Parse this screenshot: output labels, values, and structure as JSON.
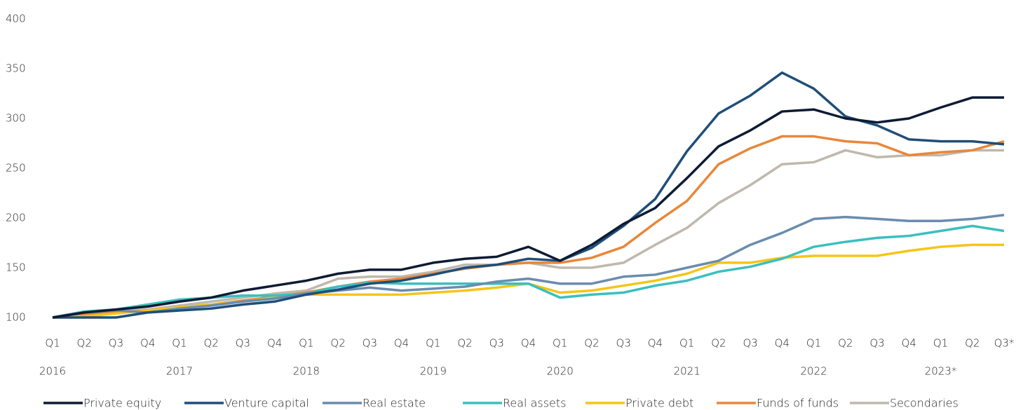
{
  "chart_data": {
    "type": "line",
    "categories": [
      "Q1",
      "Q2",
      "Q3",
      "Q4",
      "Q1",
      "Q2",
      "Q3",
      "Q4",
      "Q1",
      "Q2",
      "Q3",
      "Q4",
      "Q1",
      "Q2",
      "Q3",
      "Q4",
      "Q1",
      "Q2",
      "Q3",
      "Q4",
      "Q1",
      "Q2",
      "Q3",
      "Q4",
      "Q1",
      "Q2",
      "Q3",
      "Q4",
      "Q1",
      "Q2",
      "Q3*"
    ],
    "years": [
      "2016",
      "2017",
      "2018",
      "2019",
      "2020",
      "2021",
      "2022",
      "2023*"
    ],
    "ylim": [
      100,
      400
    ],
    "yticks": [
      100,
      150,
      200,
      250,
      300,
      350,
      400
    ],
    "grid": false,
    "legend": "bottom",
    "series": [
      {
        "name": "Private equity",
        "color": "#0d1b33",
        "values": [
          100,
          105,
          108,
          111,
          116,
          120,
          127,
          132,
          137,
          144,
          148,
          148,
          155,
          159,
          161,
          171,
          157,
          173,
          194,
          210,
          240,
          272,
          288,
          307,
          309,
          300,
          296,
          300,
          311,
          321,
          321
        ]
      },
      {
        "name": "Venture capital",
        "color": "#1f4e79",
        "values": [
          100,
          100,
          100,
          105,
          107,
          109,
          113,
          116,
          123,
          128,
          134,
          137,
          143,
          150,
          153,
          159,
          157,
          170,
          192,
          219,
          267,
          305,
          323,
          346,
          330,
          302,
          293,
          279,
          277,
          277,
          274
        ]
      },
      {
        "name": "Real estate",
        "color": "#6a8caf",
        "values": [
          100,
          105,
          107,
          105,
          109,
          112,
          116,
          119,
          124,
          127,
          130,
          127,
          129,
          131,
          136,
          139,
          134,
          134,
          141,
          143,
          150,
          157,
          173,
          185,
          199,
          201,
          199,
          197,
          197,
          199,
          203
        ]
      },
      {
        "name": "Real assets",
        "color": "#3bbfbf",
        "values": [
          100,
          106,
          108,
          113,
          118,
          120,
          122,
          122,
          124,
          131,
          135,
          134,
          134,
          134,
          134,
          134,
          120,
          123,
          125,
          132,
          137,
          146,
          151,
          159,
          171,
          176,
          180,
          182,
          187,
          192,
          187
        ]
      },
      {
        "name": "Private debt",
        "color": "#f5c518",
        "values": [
          100,
          101,
          104,
          107,
          110,
          113,
          116,
          120,
          123,
          123,
          123,
          123,
          125,
          127,
          130,
          134,
          125,
          127,
          132,
          137,
          144,
          155,
          155,
          160,
          162,
          162,
          162,
          167,
          171,
          173,
          173
        ]
      },
      {
        "name": "Funds of funds",
        "color": "#e8873a",
        "values": [
          100,
          103,
          105,
          107,
          110,
          113,
          117,
          121,
          125,
          131,
          136,
          139,
          144,
          149,
          153,
          155,
          155,
          160,
          171,
          195,
          217,
          254,
          270,
          282,
          282,
          277,
          275,
          263,
          266,
          268,
          277
        ]
      },
      {
        "name": "Secondaries",
        "color": "#bfb8ad",
        "values": [
          100,
          103,
          106,
          108,
          112,
          116,
          120,
          124,
          127,
          139,
          141,
          141,
          146,
          153,
          153,
          155,
          150,
          150,
          155,
          173,
          190,
          215,
          233,
          254,
          256,
          268,
          261,
          263,
          263,
          268,
          268
        ]
      }
    ]
  }
}
